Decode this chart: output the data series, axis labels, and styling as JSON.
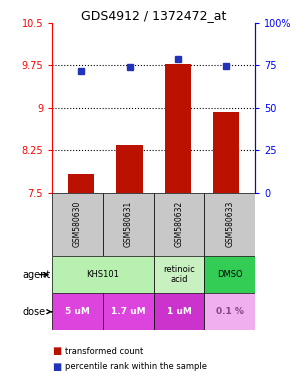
{
  "title": "GDS4912 / 1372472_at",
  "samples": [
    "GSM580630",
    "GSM580631",
    "GSM580632",
    "GSM580633"
  ],
  "red_values": [
    7.82,
    8.35,
    9.78,
    8.93
  ],
  "blue_values": [
    9.65,
    9.72,
    9.87,
    9.74
  ],
  "ylim_left": [
    7.5,
    10.5
  ],
  "ylim_right": [
    0,
    100
  ],
  "yticks_left": [
    7.5,
    8.25,
    9.0,
    9.75,
    10.5
  ],
  "yticks_right": [
    0,
    25,
    50,
    75,
    100
  ],
  "ytick_labels_left": [
    "7.5",
    "8.25",
    "9",
    "9.75",
    "10.5"
  ],
  "ytick_labels_right": [
    "0",
    "25",
    "50",
    "75",
    "100%"
  ],
  "hlines": [
    8.25,
    9.0,
    9.75
  ],
  "agent_configs": [
    {
      "cols": [
        0,
        1
      ],
      "name": "KHS101",
      "color": "#b8f0b0"
    },
    {
      "cols": [
        2
      ],
      "name": "retinoic\nacid",
      "color": "#c8f0c0"
    },
    {
      "cols": [
        3
      ],
      "name": "DMSO",
      "color": "#33cc55"
    }
  ],
  "dose_labels": [
    "5 uM",
    "1.7 uM",
    "1 uM",
    "0.1 %"
  ],
  "dose_colors": [
    "#dd44dd",
    "#dd44dd",
    "#cc33cc",
    "#f0b0f0"
  ],
  "dose_text_colors": [
    "white",
    "white",
    "white",
    "#884488"
  ],
  "sample_bg_color": "#c8c8c8",
  "legend_red": "transformed count",
  "legend_blue": "percentile rank within the sample",
  "bar_color": "#bb1100",
  "dot_color": "#2233bb",
  "bar_bottom": 7.5,
  "bar_width": 0.55
}
